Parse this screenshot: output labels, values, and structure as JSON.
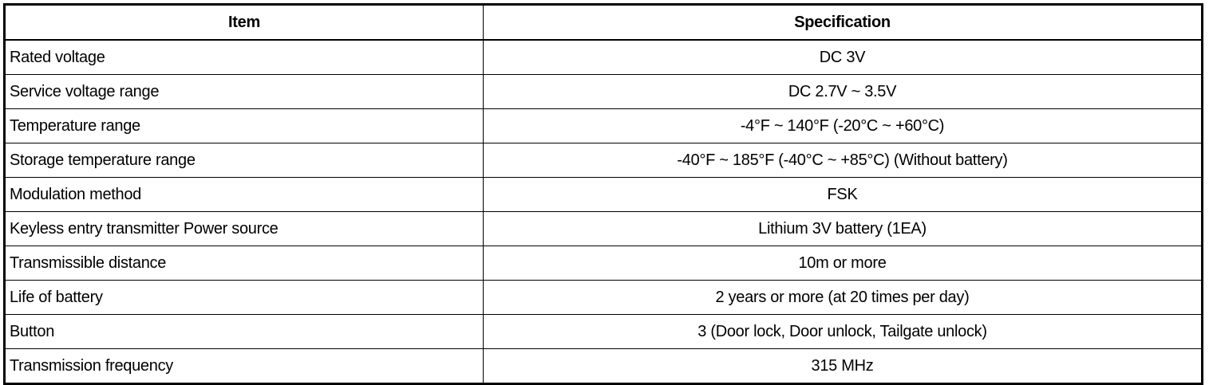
{
  "table": {
    "headers": [
      "Item",
      "Specification"
    ],
    "rows": [
      {
        "item": "Rated voltage",
        "spec": "DC 3V"
      },
      {
        "item": "Service voltage range",
        "spec": "DC 2.7V ~ 3.5V"
      },
      {
        "item": "Temperature range",
        "spec": "-4°F ~ 140°F (-20°C ~ +60°C)"
      },
      {
        "item": "Storage temperature range",
        "spec": "-40°F ~ 185°F (-40°C ~ +85°C) (Without battery)"
      },
      {
        "item": "Modulation method",
        "spec": "FSK"
      },
      {
        "item": "Keyless entry transmitter Power source",
        "spec": "Lithium 3V battery (1EA)"
      },
      {
        "item": "Transmissible distance",
        "spec": "10m or more"
      },
      {
        "item": "Life of battery",
        "spec": "2 years or more (at 20 times per day)"
      },
      {
        "item": "Button",
        "spec": "3 (Door lock, Door unlock, Tailgate unlock)"
      },
      {
        "item": "Transmission frequency",
        "spec": "315 MHz"
      }
    ]
  }
}
